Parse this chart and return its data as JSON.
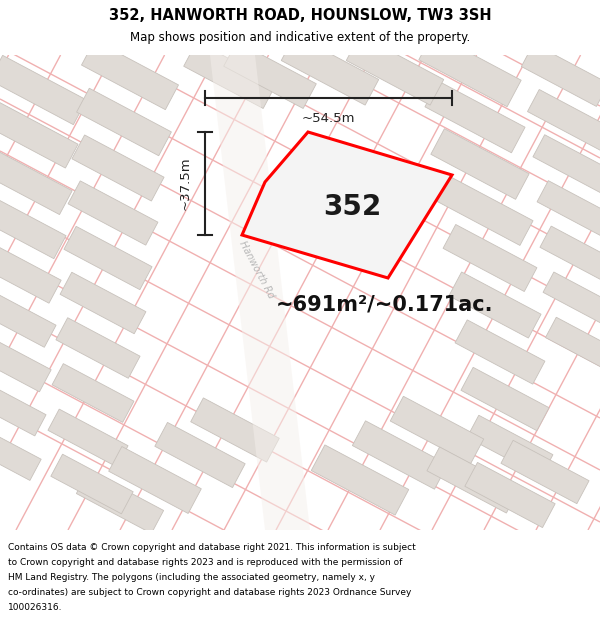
{
  "title": "352, HANWORTH ROAD, HOUNSLOW, TW3 3SH",
  "subtitle": "Map shows position and indicative extent of the property.",
  "area_label": "~691m²/~0.171ac.",
  "plot_label": "352",
  "dim_width": "~54.5m",
  "dim_height": "~37.5m",
  "road_label": "Hanworth Rd",
  "footer_lines": [
    "Contains OS data © Crown copyright and database right 2021. This information is subject to Crown copyright and database rights 2023 and is reproduced with the permission of",
    "HM Land Registry. The polygons (including the associated geometry, namely x, y co-ordinates) are subject to Crown copyright and database rights 2023 Ordnance Survey",
    "100026316."
  ],
  "bg_color": "#f0ece7",
  "building_color": "#e0dbd6",
  "building_edge": "#c8c2bc",
  "road_line_color": "#f0b0b0",
  "plot_polygon_color": "#ff0000",
  "dim_color": "#222222",
  "title_color": "#000000"
}
